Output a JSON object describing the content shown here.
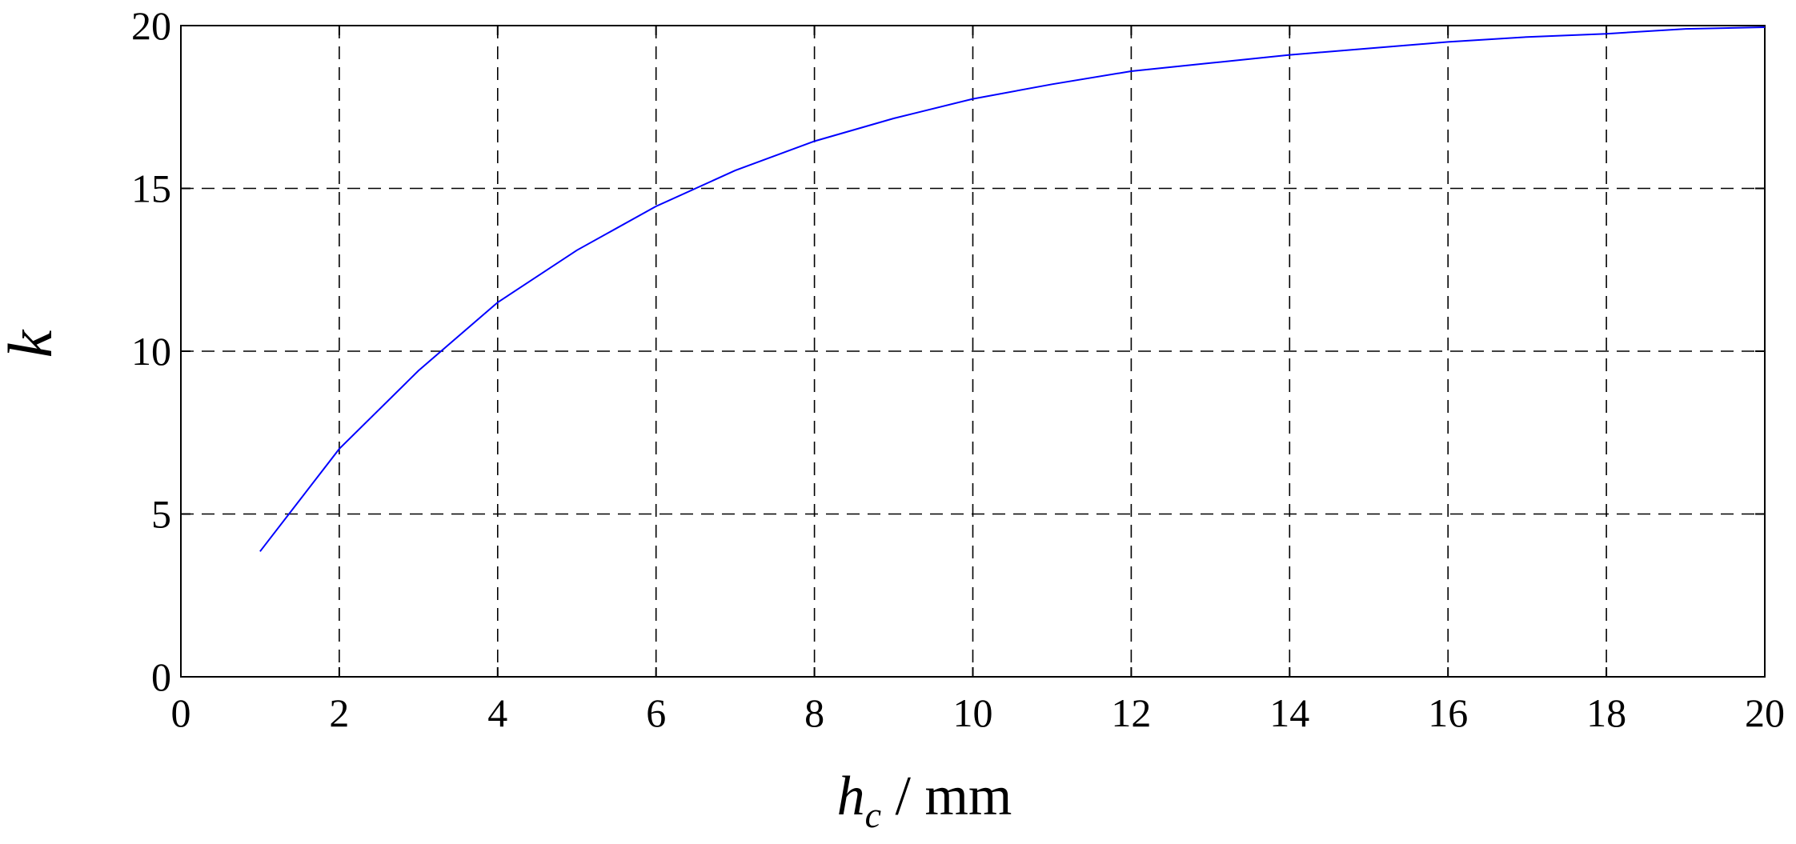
{
  "chart_data": {
    "type": "line",
    "title": "",
    "xlabel": {
      "main": "h",
      "subscript": "c",
      "unit": " / mm"
    },
    "ylabel": "k",
    "xlim": [
      0,
      20
    ],
    "ylim": [
      0,
      20
    ],
    "xticks": [
      "0",
      "2",
      "4",
      "6",
      "8",
      "10",
      "12",
      "14",
      "16",
      "18",
      "20"
    ],
    "yticks": [
      "0",
      "5",
      "10",
      "15",
      "20"
    ],
    "grid": true,
    "series_color": "#0000ff",
    "series": [
      {
        "x": [
          1,
          2,
          3,
          4,
          5,
          6,
          7,
          8,
          9,
          10,
          11,
          12,
          13,
          14,
          15,
          16,
          17,
          18,
          19,
          20
        ],
        "y": [
          3.85,
          7.0,
          9.4,
          11.5,
          13.1,
          14.45,
          15.55,
          16.45,
          17.15,
          17.75,
          18.2,
          18.6,
          18.85,
          19.1,
          19.3,
          19.5,
          19.65,
          19.75,
          19.9,
          19.95
        ]
      }
    ]
  }
}
